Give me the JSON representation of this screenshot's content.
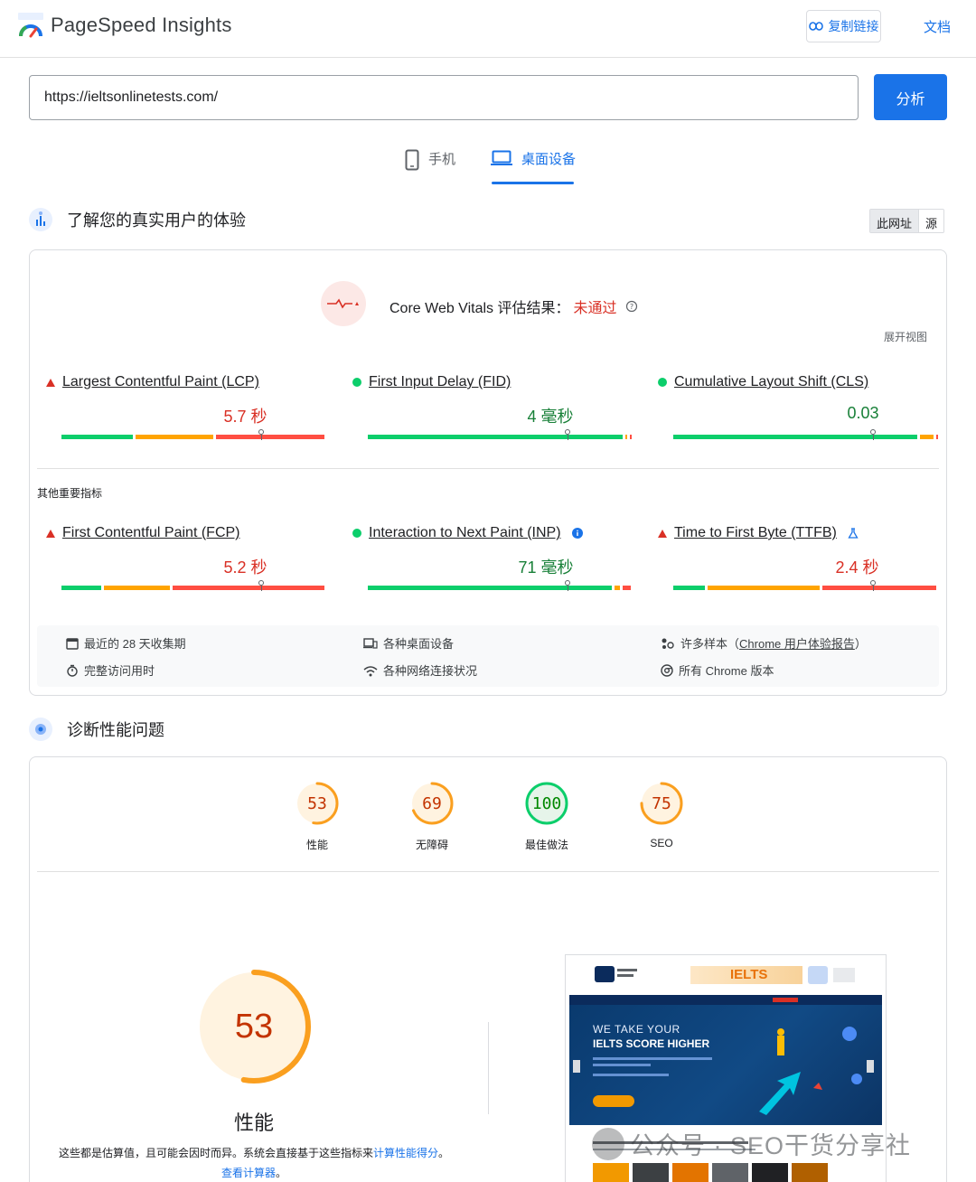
{
  "header": {
    "app_title": "PageSpeed Insights",
    "copy_link_label": "复制链接",
    "docs_label": "文档"
  },
  "search": {
    "url_value": "https://ieltsonlinetests.com/",
    "analyze_label": "分析"
  },
  "device_tabs": [
    {
      "label": "手机",
      "icon": "mobile-phone-icon",
      "active": false
    },
    {
      "label": "桌面设备",
      "icon": "laptop-icon",
      "active": true
    }
  ],
  "field_data": {
    "section_title": "了解您的真实用户的体验",
    "scope_toggle": [
      "此网址",
      "源"
    ],
    "cwv_title": "Core Web Vitals 评估结果：",
    "cwv_result": "未通过",
    "expand_label": "展开视图",
    "core_metrics": [
      {
        "name": "Largest Contentful Paint (LCP)",
        "value": "5.7 秒",
        "status": "poor",
        "distribution": [
          0.28,
          0.3,
          0.42
        ],
        "marker": 0.75
      },
      {
        "name": "First Input Delay (FID)",
        "value": "4 毫秒",
        "status": "good",
        "distribution": [
          0.97,
          0.015,
          0.015
        ],
        "marker": 0.75
      },
      {
        "name": "Cumulative Layout Shift (CLS)",
        "value": "0.03",
        "status": "good",
        "distribution": [
          0.93,
          0.06,
          0.01
        ],
        "marker": 0.75
      }
    ],
    "other_label": "其他重要指标",
    "other_metrics": [
      {
        "name": "First Contentful Paint (FCP)",
        "value": "5.2 秒",
        "status": "poor",
        "distribution": [
          0.16,
          0.26,
          0.58
        ],
        "marker": 0.75,
        "suffix_icon": ""
      },
      {
        "name": "Interaction to Next Paint (INP)",
        "value": "71 毫秒",
        "status": "good",
        "distribution": [
          0.93,
          0.03,
          0.04
        ],
        "marker": 0.75,
        "suffix_icon": "info-icon"
      },
      {
        "name": "Time to First Byte (TTFB)",
        "value": "2.4 秒",
        "status": "poor",
        "distribution": [
          0.13,
          0.43,
          0.44
        ],
        "marker": 0.75,
        "suffix_icon": "experimental-flask-icon"
      }
    ],
    "info": {
      "period": "最近的 28 天收集期",
      "duration": "完整访问用时",
      "devices": "各种桌面设备",
      "network": "各种网络连接状况",
      "samples_prefix": "许多样本（",
      "samples_link": "Chrome 用户体验报告",
      "samples_suffix": "）",
      "chrome": "所有 Chrome 版本"
    }
  },
  "diagnose": {
    "section_title": "诊断性能问题",
    "scores": [
      {
        "value": 53,
        "label": "性能",
        "color": "#fa9f1f",
        "num_color": "#c33300",
        "bg": "#fff3e0"
      },
      {
        "value": 69,
        "label": "无障碍",
        "color": "#fa9f1f",
        "num_color": "#c33300",
        "bg": "#fff3e0"
      },
      {
        "value": 100,
        "label": "最佳做法",
        "color": "#0cce6b",
        "num_color": "#008800",
        "bg": "#e6f4ea"
      },
      {
        "value": 75,
        "label": "SEO",
        "color": "#fa9f1f",
        "num_color": "#c33300",
        "bg": "#fff3e0"
      }
    ],
    "big_score": {
      "value": 53,
      "label": "性能"
    },
    "desc_text": "这些都是估算值，且可能会因时而异。系统会直接基于这些指标来",
    "desc_link1": "计算性能得分",
    "desc_sep": "。",
    "desc_link2": "查看计算器",
    "desc_end": "。",
    "thumb": {
      "hero_line1": "WE TAKE YOUR",
      "hero_line2": "IELTS SCORE HIGHER",
      "brand_word": "IELTS"
    }
  },
  "watermark": {
    "text": "公众号 · SEO干货分享社"
  },
  "colors": {
    "accent": "#1a73e8",
    "poor": "#ff4e42",
    "average": "#ffa400",
    "good": "#0cce6b",
    "fail_text": "#d93025"
  }
}
